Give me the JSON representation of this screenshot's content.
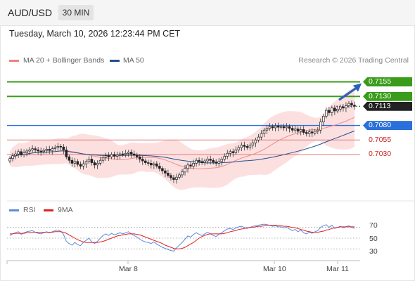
{
  "header": {
    "symbol": "AUD/USD",
    "timeframe": "30 MIN",
    "timestamp": "Tuesday, March 10, 2026 12:23:44 PM CET"
  },
  "legend": {
    "bollinger": {
      "label": "MA 20 + Bollinger Bands",
      "color": "#f08080"
    },
    "ma50": {
      "label": "MA 50",
      "color": "#1f4e8c"
    },
    "credit": "Research © 2026 Trading Central"
  },
  "rsi_legend": {
    "rsi": {
      "label": "RSI",
      "color": "#5b8be0"
    },
    "ma9": {
      "label": "9MA",
      "color": "#e02020"
    }
  },
  "levels": [
    {
      "value": 0.7155,
      "label": "0.7155",
      "color": "#3a9c1a",
      "style": "tag"
    },
    {
      "value": 0.713,
      "label": "0.7130",
      "color": "#3a9c1a",
      "style": "tag"
    },
    {
      "value": 0.7113,
      "label": "0.7113",
      "color": "#222222",
      "style": "tag"
    },
    {
      "value": 0.708,
      "label": "0.7080",
      "color": "#2a6fdb",
      "style": "tag"
    },
    {
      "value": 0.7055,
      "label": "0.7055",
      "color": "#cc2222",
      "style": "plain"
    },
    {
      "value": 0.703,
      "label": "0.7030",
      "color": "#cc2222",
      "style": "plain"
    }
  ],
  "rsi_ticks": [
    "70",
    "50",
    "30"
  ],
  "dates": [
    "Mar 8",
    "Mar 10",
    "Mar 11"
  ],
  "chart_data": {
    "type": "candlestick",
    "instrument": "AUD/USD",
    "interval": "30 MIN",
    "price_range": [
      0.6955,
      0.7175
    ],
    "rsi_range": [
      20,
      80
    ],
    "close_series": [
      0.7023,
      0.7028,
      0.7031,
      0.7035,
      0.703,
      0.7033,
      0.7036,
      0.7038,
      0.704,
      0.7038,
      0.7036,
      0.7035,
      0.7037,
      0.7039,
      0.7037,
      0.704,
      0.7042,
      0.7044,
      0.7043,
      0.7038,
      0.7026,
      0.702,
      0.7015,
      0.7018,
      0.7013,
      0.701,
      0.7014,
      0.7018,
      0.7022,
      0.7016,
      0.7012,
      0.7015,
      0.702,
      0.7025,
      0.7028,
      0.7026,
      0.703,
      0.7027,
      0.7029,
      0.7031,
      0.703,
      0.7032,
      0.7034,
      0.7031,
      0.7029,
      0.7026,
      0.7022,
      0.7019,
      0.7016,
      0.7015,
      0.7012,
      0.7014,
      0.701,
      0.7006,
      0.7002,
      0.6998,
      0.6994,
      0.699,
      0.6987,
      0.6991,
      0.6995,
      0.7,
      0.7006,
      0.7012,
      0.701,
      0.7015,
      0.702,
      0.7018,
      0.7016,
      0.7019,
      0.7022,
      0.702,
      0.7017,
      0.7015,
      0.7018,
      0.7022,
      0.7027,
      0.7032,
      0.7035,
      0.7033,
      0.7038,
      0.7042,
      0.7046,
      0.7044,
      0.7042,
      0.7046,
      0.705,
      0.7055,
      0.706,
      0.7066,
      0.7072,
      0.7075,
      0.7078,
      0.7076,
      0.7079,
      0.7077,
      0.7078,
      0.7076,
      0.7078,
      0.7075,
      0.7072,
      0.7074,
      0.707,
      0.7073,
      0.7068,
      0.7066,
      0.7069,
      0.7067,
      0.707,
      0.7072,
      0.7086,
      0.7096,
      0.7106,
      0.7102,
      0.711,
      0.7105,
      0.7108,
      0.7112,
      0.711,
      0.7114,
      0.7118,
      0.7115,
      0.7113
    ],
    "rsi_values": [
      55,
      58,
      60,
      62,
      57,
      60,
      62,
      63,
      64,
      61,
      59,
      58,
      60,
      62,
      60,
      62,
      64,
      65,
      63,
      57,
      44,
      40,
      37,
      42,
      38,
      36,
      42,
      46,
      50,
      43,
      40,
      44,
      50,
      55,
      58,
      55,
      59,
      56,
      58,
      60,
      58,
      60,
      62,
      58,
      55,
      52,
      48,
      45,
      43,
      42,
      40,
      43,
      39,
      36,
      33,
      31,
      29,
      27,
      26,
      32,
      37,
      42,
      48,
      54,
      52,
      57,
      60,
      57,
      55,
      58,
      61,
      58,
      55,
      53,
      57,
      60,
      64,
      67,
      68,
      66,
      69,
      71,
      72,
      70,
      68,
      70,
      72,
      73,
      74,
      75,
      76,
      75,
      74,
      72,
      73,
      71,
      71,
      69,
      70,
      67,
      64,
      66,
      62,
      65,
      60,
      58,
      61,
      59,
      62,
      64,
      70,
      73,
      75,
      70,
      74,
      68,
      70,
      72,
      69,
      71,
      73,
      70,
      68
    ],
    "rsi_ma_values": [
      58,
      58,
      59,
      59,
      59,
      59,
      60,
      60,
      61,
      61,
      61,
      61,
      61,
      61,
      61,
      61,
      62,
      62,
      62,
      61,
      59,
      56,
      53,
      50,
      47,
      45,
      43,
      42,
      42,
      42,
      42,
      42,
      43,
      44,
      46,
      48,
      50,
      52,
      54,
      55,
      56,
      57,
      58,
      58,
      58,
      57,
      56,
      54,
      52,
      50,
      48,
      46,
      44,
      42,
      40,
      37,
      35,
      33,
      31,
      30,
      30,
      31,
      33,
      36,
      39,
      42,
      46,
      50,
      53,
      55,
      57,
      58,
      58,
      58,
      58,
      58,
      59,
      60,
      62,
      63,
      64,
      66,
      67,
      68,
      69,
      70,
      70,
      71,
      72,
      72,
      73,
      74,
      74,
      74,
      74,
      74,
      73,
      72,
      72,
      71,
      70,
      69,
      68,
      66,
      65,
      63,
      62,
      61,
      61,
      61,
      62,
      63,
      65,
      66,
      68,
      69,
      70,
      71,
      71,
      71,
      71,
      71,
      71
    ]
  }
}
